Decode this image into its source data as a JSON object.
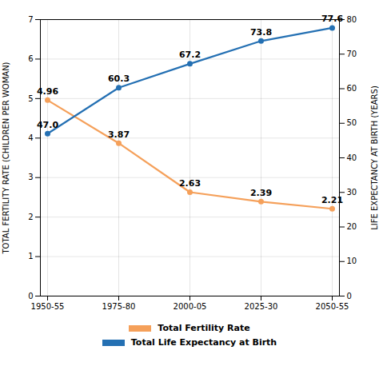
{
  "chart_data": {
    "type": "line",
    "categories": [
      "1950-55",
      "1975-80",
      "2000-05",
      "2025-30",
      "2050-55"
    ],
    "series": [
      {
        "name": "Total Fertility Rate",
        "color": "#F5A05A",
        "values": [
          4.96,
          3.87,
          2.63,
          2.39,
          2.21
        ],
        "value_labels": [
          "4.96",
          "3.87",
          "2.63",
          "2.39",
          "2.21"
        ]
      },
      {
        "name": "Total Life Expectancy at Birth",
        "color": "#2470B3",
        "axis": "y2",
        "values": [
          47.0,
          60.3,
          67.2,
          73.8,
          77.6
        ],
        "value_labels": [
          "47.0",
          "60.3",
          "67.2",
          "73.8",
          "77.6"
        ]
      }
    ],
    "ylabel": "TOTAL FERTILITY RATE (CHILDREN PER WOMAN)",
    "y2label": "LIFE EXPECTANCY AT BIRTH (YEARS)",
    "ylim": [
      0,
      7
    ],
    "yticks": [
      0,
      1,
      2,
      3,
      4,
      5,
      6,
      7
    ],
    "y2lim": [
      0,
      80
    ],
    "y2ticks": [
      0,
      10,
      20,
      30,
      40,
      50,
      60,
      70,
      80
    ],
    "grid": true,
    "legend": "bottom",
    "data_labels": true,
    "marker": "circle"
  }
}
